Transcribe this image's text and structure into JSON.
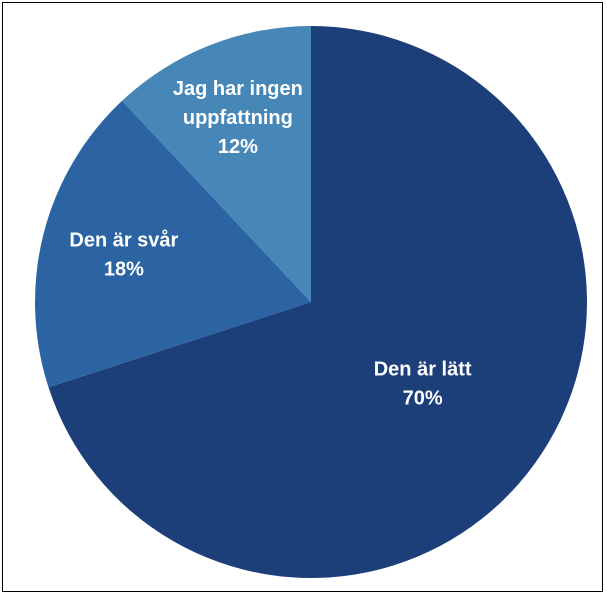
{
  "chart_data": {
    "type": "pie",
    "title": "",
    "start_angle_deg": 0,
    "direction": "clockwise",
    "legend": "none",
    "slices": [
      {
        "label": "Den är lätt",
        "value": 70,
        "value_label": "70%",
        "color": "#1c3f7a"
      },
      {
        "label": "Den är svår",
        "value": 18,
        "value_label": "18%",
        "color": "#2b63a3"
      },
      {
        "label": "Jag har ingen uppfattning",
        "value": 12,
        "value_label": "12%",
        "color": "#4787b8"
      }
    ]
  }
}
